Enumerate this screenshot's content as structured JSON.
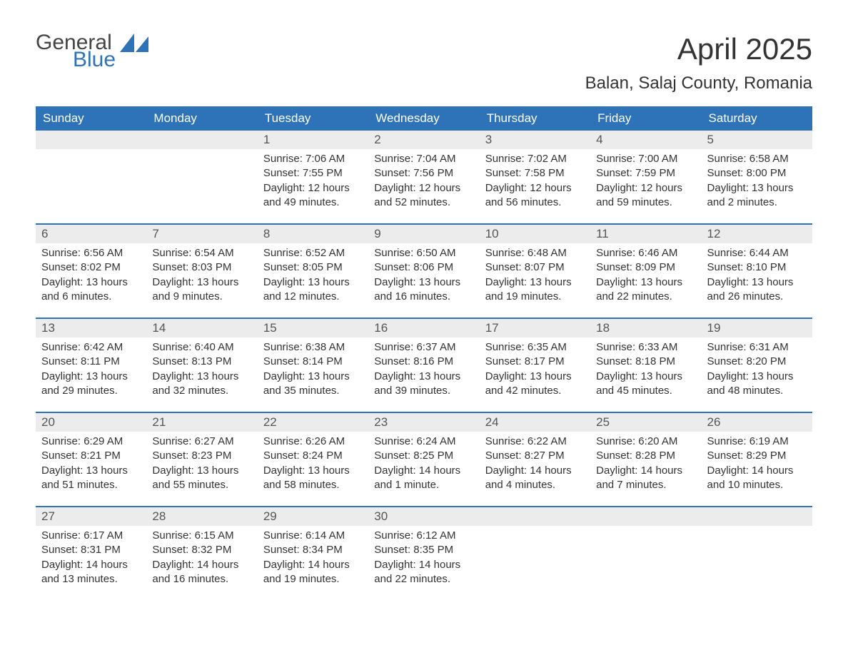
{
  "logo": {
    "word1": "General",
    "word2": "Blue",
    "accent_color": "#2e73b8",
    "text_color": "#444444"
  },
  "title": "April 2025",
  "location": "Balan, Salaj County, Romania",
  "header_bg": "#2e73b8",
  "header_fg": "#ffffff",
  "daynum_bg": "#ececec",
  "weekdays": [
    "Sunday",
    "Monday",
    "Tuesday",
    "Wednesday",
    "Thursday",
    "Friday",
    "Saturday"
  ],
  "weeks": [
    [
      null,
      null,
      {
        "n": "1",
        "sunrise": "Sunrise: 7:06 AM",
        "sunset": "Sunset: 7:55 PM",
        "day1": "Daylight: 12 hours",
        "day2": "and 49 minutes."
      },
      {
        "n": "2",
        "sunrise": "Sunrise: 7:04 AM",
        "sunset": "Sunset: 7:56 PM",
        "day1": "Daylight: 12 hours",
        "day2": "and 52 minutes."
      },
      {
        "n": "3",
        "sunrise": "Sunrise: 7:02 AM",
        "sunset": "Sunset: 7:58 PM",
        "day1": "Daylight: 12 hours",
        "day2": "and 56 minutes."
      },
      {
        "n": "4",
        "sunrise": "Sunrise: 7:00 AM",
        "sunset": "Sunset: 7:59 PM",
        "day1": "Daylight: 12 hours",
        "day2": "and 59 minutes."
      },
      {
        "n": "5",
        "sunrise": "Sunrise: 6:58 AM",
        "sunset": "Sunset: 8:00 PM",
        "day1": "Daylight: 13 hours",
        "day2": "and 2 minutes."
      }
    ],
    [
      {
        "n": "6",
        "sunrise": "Sunrise: 6:56 AM",
        "sunset": "Sunset: 8:02 PM",
        "day1": "Daylight: 13 hours",
        "day2": "and 6 minutes."
      },
      {
        "n": "7",
        "sunrise": "Sunrise: 6:54 AM",
        "sunset": "Sunset: 8:03 PM",
        "day1": "Daylight: 13 hours",
        "day2": "and 9 minutes."
      },
      {
        "n": "8",
        "sunrise": "Sunrise: 6:52 AM",
        "sunset": "Sunset: 8:05 PM",
        "day1": "Daylight: 13 hours",
        "day2": "and 12 minutes."
      },
      {
        "n": "9",
        "sunrise": "Sunrise: 6:50 AM",
        "sunset": "Sunset: 8:06 PM",
        "day1": "Daylight: 13 hours",
        "day2": "and 16 minutes."
      },
      {
        "n": "10",
        "sunrise": "Sunrise: 6:48 AM",
        "sunset": "Sunset: 8:07 PM",
        "day1": "Daylight: 13 hours",
        "day2": "and 19 minutes."
      },
      {
        "n": "11",
        "sunrise": "Sunrise: 6:46 AM",
        "sunset": "Sunset: 8:09 PM",
        "day1": "Daylight: 13 hours",
        "day2": "and 22 minutes."
      },
      {
        "n": "12",
        "sunrise": "Sunrise: 6:44 AM",
        "sunset": "Sunset: 8:10 PM",
        "day1": "Daylight: 13 hours",
        "day2": "and 26 minutes."
      }
    ],
    [
      {
        "n": "13",
        "sunrise": "Sunrise: 6:42 AM",
        "sunset": "Sunset: 8:11 PM",
        "day1": "Daylight: 13 hours",
        "day2": "and 29 minutes."
      },
      {
        "n": "14",
        "sunrise": "Sunrise: 6:40 AM",
        "sunset": "Sunset: 8:13 PM",
        "day1": "Daylight: 13 hours",
        "day2": "and 32 minutes."
      },
      {
        "n": "15",
        "sunrise": "Sunrise: 6:38 AM",
        "sunset": "Sunset: 8:14 PM",
        "day1": "Daylight: 13 hours",
        "day2": "and 35 minutes."
      },
      {
        "n": "16",
        "sunrise": "Sunrise: 6:37 AM",
        "sunset": "Sunset: 8:16 PM",
        "day1": "Daylight: 13 hours",
        "day2": "and 39 minutes."
      },
      {
        "n": "17",
        "sunrise": "Sunrise: 6:35 AM",
        "sunset": "Sunset: 8:17 PM",
        "day1": "Daylight: 13 hours",
        "day2": "and 42 minutes."
      },
      {
        "n": "18",
        "sunrise": "Sunrise: 6:33 AM",
        "sunset": "Sunset: 8:18 PM",
        "day1": "Daylight: 13 hours",
        "day2": "and 45 minutes."
      },
      {
        "n": "19",
        "sunrise": "Sunrise: 6:31 AM",
        "sunset": "Sunset: 8:20 PM",
        "day1": "Daylight: 13 hours",
        "day2": "and 48 minutes."
      }
    ],
    [
      {
        "n": "20",
        "sunrise": "Sunrise: 6:29 AM",
        "sunset": "Sunset: 8:21 PM",
        "day1": "Daylight: 13 hours",
        "day2": "and 51 minutes."
      },
      {
        "n": "21",
        "sunrise": "Sunrise: 6:27 AM",
        "sunset": "Sunset: 8:23 PM",
        "day1": "Daylight: 13 hours",
        "day2": "and 55 minutes."
      },
      {
        "n": "22",
        "sunrise": "Sunrise: 6:26 AM",
        "sunset": "Sunset: 8:24 PM",
        "day1": "Daylight: 13 hours",
        "day2": "and 58 minutes."
      },
      {
        "n": "23",
        "sunrise": "Sunrise: 6:24 AM",
        "sunset": "Sunset: 8:25 PM",
        "day1": "Daylight: 14 hours",
        "day2": "and 1 minute."
      },
      {
        "n": "24",
        "sunrise": "Sunrise: 6:22 AM",
        "sunset": "Sunset: 8:27 PM",
        "day1": "Daylight: 14 hours",
        "day2": "and 4 minutes."
      },
      {
        "n": "25",
        "sunrise": "Sunrise: 6:20 AM",
        "sunset": "Sunset: 8:28 PM",
        "day1": "Daylight: 14 hours",
        "day2": "and 7 minutes."
      },
      {
        "n": "26",
        "sunrise": "Sunrise: 6:19 AM",
        "sunset": "Sunset: 8:29 PM",
        "day1": "Daylight: 14 hours",
        "day2": "and 10 minutes."
      }
    ],
    [
      {
        "n": "27",
        "sunrise": "Sunrise: 6:17 AM",
        "sunset": "Sunset: 8:31 PM",
        "day1": "Daylight: 14 hours",
        "day2": "and 13 minutes."
      },
      {
        "n": "28",
        "sunrise": "Sunrise: 6:15 AM",
        "sunset": "Sunset: 8:32 PM",
        "day1": "Daylight: 14 hours",
        "day2": "and 16 minutes."
      },
      {
        "n": "29",
        "sunrise": "Sunrise: 6:14 AM",
        "sunset": "Sunset: 8:34 PM",
        "day1": "Daylight: 14 hours",
        "day2": "and 19 minutes."
      },
      {
        "n": "30",
        "sunrise": "Sunrise: 6:12 AM",
        "sunset": "Sunset: 8:35 PM",
        "day1": "Daylight: 14 hours",
        "day2": "and 22 minutes."
      },
      null,
      null,
      null
    ]
  ]
}
